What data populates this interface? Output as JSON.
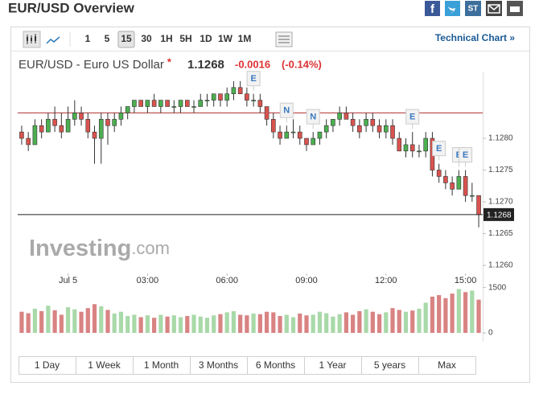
{
  "header": {
    "title": "EUR/USD Overview",
    "share_label": "ST"
  },
  "toolbar": {
    "intervals": [
      "1",
      "5",
      "15",
      "30",
      "1H",
      "5H",
      "1D",
      "1W",
      "1M"
    ],
    "selected": 2,
    "link": "Technical Chart »"
  },
  "quote": {
    "name": "EUR/USD - Euro US Dollar",
    "marker": "*",
    "change_percent": "(-0.14%)"
  },
  "chart_data": {
    "type": "candlestick",
    "last": 1.1268,
    "change": -0.0016,
    "prev_close": 1.1284,
    "up_color": "#4caf50",
    "down_color": "#d9534f",
    "volume_up_color": "#a9d9a9",
    "volume_down_color": "#d98383",
    "watermark": [
      "Investing",
      ".com"
    ],
    "xlim": [
      -0.6,
      69.6
    ],
    "xticks": [
      {
        "value": 7,
        "label": "Jul 5"
      },
      {
        "value": 19,
        "label": "03:00"
      },
      {
        "value": 31,
        "label": "06:00"
      },
      {
        "value": 43,
        "label": "09:00"
      },
      {
        "value": 55,
        "label": "12:00"
      },
      {
        "value": 67,
        "label": "15:00"
      }
    ],
    "ylim": [
      1.1259,
      1.129
    ],
    "yticks": [
      {
        "value": 1.126,
        "label": "1.1260"
      },
      1.1265,
      {
        "value": 1.127,
        "label": "1.1270"
      },
      1.1275,
      {
        "value": 1.128,
        "label": "1.1280"
      }
    ],
    "ohlc": [
      [
        1.1281,
        1.1282,
        1.1279,
        1.128
      ],
      [
        1.128,
        1.1281,
        1.1278,
        1.1279
      ],
      [
        1.1279,
        1.1283,
        1.1279,
        1.1282
      ],
      [
        1.1282,
        1.1283,
        1.128,
        1.1281
      ],
      [
        1.1281,
        1.1284,
        1.1281,
        1.1283
      ],
      [
        1.1283,
        1.1285,
        1.1281,
        1.1282
      ],
      [
        1.1282,
        1.1284,
        1.128,
        1.1281
      ],
      [
        1.1281,
        1.1285,
        1.1281,
        1.1283
      ],
      [
        1.1283,
        1.1286,
        1.1282,
        1.1284
      ],
      [
        1.1284,
        1.1285,
        1.1282,
        1.1283
      ],
      [
        1.1283,
        1.1284,
        1.128,
        1.1281
      ],
      [
        1.1281,
        1.1282,
        1.1276,
        1.128
      ],
      [
        1.128,
        1.1284,
        1.1276,
        1.1283
      ],
      [
        1.1283,
        1.1284,
        1.1279,
        1.1282
      ],
      [
        1.1282,
        1.1284,
        1.1281,
        1.1283
      ],
      [
        1.1283,
        1.1285,
        1.1282,
        1.1284
      ],
      [
        1.1284,
        1.1285,
        1.1283,
        1.1285
      ],
      [
        1.1285,
        1.1286,
        1.1284,
        1.1286
      ],
      [
        1.1286,
        1.1286,
        1.1285,
        1.1285
      ],
      [
        1.1285,
        1.1286,
        1.1284,
        1.1286
      ],
      [
        1.1286,
        1.1287,
        1.1285,
        1.1285
      ],
      [
        1.1285,
        1.1286,
        1.1284,
        1.1286
      ],
      [
        1.1286,
        1.1286,
        1.1285,
        1.1285
      ],
      [
        1.1285,
        1.1286,
        1.1284,
        1.1285
      ],
      [
        1.1285,
        1.1286,
        1.1284,
        1.1286
      ],
      [
        1.1286,
        1.1286,
        1.1285,
        1.1285
      ],
      [
        1.1285,
        1.1286,
        1.1284,
        1.1285
      ],
      [
        1.1285,
        1.1287,
        1.1285,
        1.1286
      ],
      [
        1.1286,
        1.1287,
        1.1285,
        1.1286
      ],
      [
        1.1286,
        1.1287,
        1.1285,
        1.1287
      ],
      [
        1.1287,
        1.1287,
        1.1285,
        1.1286
      ],
      [
        1.1286,
        1.1288,
        1.1285,
        1.1287
      ],
      [
        1.1287,
        1.1289,
        1.1286,
        1.1288
      ],
      [
        1.1288,
        1.1289,
        1.1287,
        1.1287
      ],
      [
        1.1287,
        1.1288,
        1.1285,
        1.1286
      ],
      [
        1.1286,
        1.1287,
        1.1285,
        1.1286
      ],
      [
        1.1286,
        1.1287,
        1.1284,
        1.1285
      ],
      [
        1.1285,
        1.1285,
        1.1282,
        1.1283
      ],
      [
        1.1283,
        1.1284,
        1.128,
        1.1281
      ],
      [
        1.1281,
        1.1282,
        1.1279,
        1.128
      ],
      [
        1.128,
        1.1282,
        1.128,
        1.1281
      ],
      [
        1.1281,
        1.1283,
        1.128,
        1.1281
      ],
      [
        1.1281,
        1.1282,
        1.1279,
        1.128
      ],
      [
        1.128,
        1.128,
        1.1278,
        1.1279
      ],
      [
        1.1279,
        1.1281,
        1.1279,
        1.128
      ],
      [
        1.128,
        1.1281,
        1.1279,
        1.1281
      ],
      [
        1.1281,
        1.1283,
        1.128,
        1.1282
      ],
      [
        1.1282,
        1.1283,
        1.1281,
        1.1283
      ],
      [
        1.1283,
        1.1285,
        1.1282,
        1.1284
      ],
      [
        1.1284,
        1.1285,
        1.1283,
        1.1283
      ],
      [
        1.1283,
        1.1284,
        1.1281,
        1.1282
      ],
      [
        1.1282,
        1.1283,
        1.128,
        1.1281
      ],
      [
        1.1282,
        1.1284,
        1.1281,
        1.1283
      ],
      [
        1.1283,
        1.1284,
        1.1281,
        1.1282
      ],
      [
        1.1282,
        1.1283,
        1.128,
        1.1281
      ],
      [
        1.1281,
        1.1283,
        1.128,
        1.1282
      ],
      [
        1.1282,
        1.1283,
        1.1279,
        1.128
      ],
      [
        1.128,
        1.1281,
        1.1278,
        1.1278
      ],
      [
        1.1278,
        1.128,
        1.1277,
        1.1279
      ],
      [
        1.1279,
        1.1281,
        1.1277,
        1.1278
      ],
      [
        1.1278,
        1.1279,
        1.1277,
        1.1278
      ],
      [
        1.1278,
        1.1281,
        1.1277,
        1.128
      ],
      [
        1.128,
        1.1281,
        1.1274,
        1.1275
      ],
      [
        1.1275,
        1.1276,
        1.1273,
        1.1274
      ],
      [
        1.1274,
        1.1275,
        1.1272,
        1.1273
      ],
      [
        1.1273,
        1.1274,
        1.1271,
        1.1272
      ],
      [
        1.1272,
        1.1275,
        1.1272,
        1.1274
      ],
      [
        1.1274,
        1.1275,
        1.127,
        1.1271
      ],
      [
        1.1271,
        1.1273,
        1.127,
        1.1271
      ],
      [
        1.1271,
        1.1271,
        1.1266,
        1.1268
      ]
    ],
    "events": [
      {
        "x": 35,
        "label": "E"
      },
      {
        "x": 40,
        "label": "N"
      },
      {
        "x": 44,
        "label": "N"
      },
      {
        "x": 59,
        "label": "E"
      },
      {
        "x": 63,
        "label": "E"
      },
      {
        "x": 66,
        "label": "E"
      },
      {
        "x": 67,
        "label": "E"
      }
    ],
    "volume": {
      "ylim": [
        0,
        1650
      ],
      "yticks": [
        0,
        1500
      ],
      "values": [
        700,
        650,
        800,
        720,
        900,
        750,
        600,
        850,
        780,
        700,
        820,
        950,
        880,
        760,
        640,
        700,
        560,
        600,
        520,
        580,
        500,
        600,
        540,
        580,
        520,
        560,
        600,
        540,
        500,
        580,
        620,
        680,
        720,
        600,
        580,
        640,
        620,
        700,
        680,
        560,
        600,
        520,
        640,
        580,
        600,
        700,
        650,
        540,
        620,
        680,
        600,
        720,
        780,
        700,
        620,
        680,
        820,
        760,
        700,
        740,
        800,
        1000,
        1200,
        1250,
        1150,
        1300,
        1450,
        1350,
        1400,
        1100
      ]
    }
  },
  "ranges": [
    "1 Day",
    "1 Week",
    "1 Month",
    "3 Months",
    "6 Months",
    "1 Year",
    "5 years",
    "Max"
  ]
}
